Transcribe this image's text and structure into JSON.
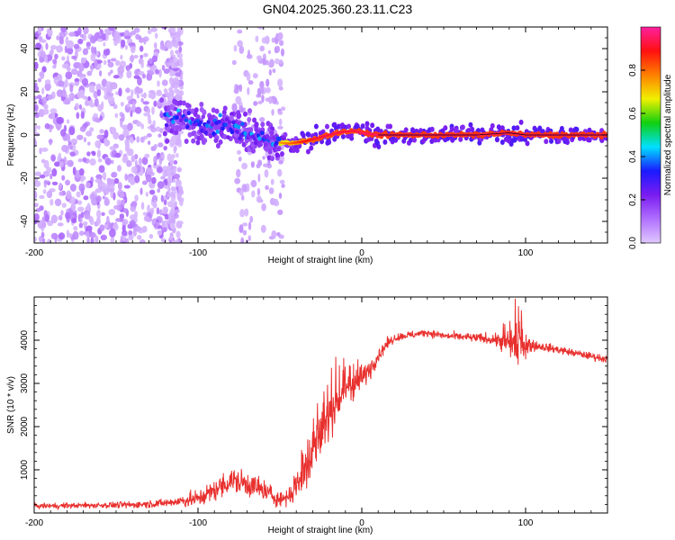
{
  "title": "GN04.2025.360.23.11.C23",
  "colors": {
    "snr_line": "#e8302e",
    "tf_ridge": "#d81818",
    "frame": "#000000",
    "colorbar_stops": [
      "#e0c8ff",
      "#b070ff",
      "#7a1cf0",
      "#1a1aff",
      "#00e0ff",
      "#10d010",
      "#f0f000",
      "#ff8000",
      "#ff1010",
      "#ff20a0"
    ]
  },
  "chart_data": [
    {
      "type": "heatmap",
      "name": "time-frequency",
      "xlabel": "Height of straight line (km)",
      "ylabel": "Frequency (Hz)",
      "xlim": [
        -200,
        150
      ],
      "ylim": [
        -50,
        50
      ],
      "xticks": [
        -200,
        -100,
        0,
        100
      ],
      "yticks": [
        -40,
        -20,
        0,
        20,
        40
      ],
      "ridge": {
        "x": [
          -115,
          -105,
          -95,
          -85,
          -75,
          -65,
          -55,
          -45,
          -35,
          -25,
          -15,
          -5,
          0,
          10,
          30,
          50,
          70,
          90,
          100,
          120,
          150
        ],
        "freq": [
          8,
          7,
          5,
          4,
          2,
          0,
          -3,
          -4,
          -3,
          -1,
          1,
          2,
          1,
          0,
          0,
          0,
          0,
          1,
          0,
          0,
          0
        ],
        "amplitude": [
          0.25,
          0.3,
          0.35,
          0.35,
          0.3,
          0.3,
          0.4,
          0.6,
          0.85,
          0.95,
          0.95,
          0.95,
          1,
          1,
          1,
          1,
          1,
          1,
          1,
          1,
          1
        ]
      },
      "colorbar": {
        "label": "Normalized spectral amplitude",
        "range": [
          0,
          1
        ],
        "ticks": [
          "0.0",
          "0.2",
          "0.4",
          "0.6",
          "0.8"
        ]
      }
    },
    {
      "type": "line",
      "name": "snr",
      "xlabel": "Height of straight line (km)",
      "ylabel": "SNR (10 * v/v)",
      "xlim": [
        -200,
        150
      ],
      "ylim": [
        0,
        5000
      ],
      "xticks": [
        -200,
        -100,
        0,
        100
      ],
      "yticks": [
        1000,
        2000,
        3000,
        4000
      ],
      "series": [
        {
          "name": "SNR",
          "x": [
            -200,
            -180,
            -160,
            -140,
            -120,
            -110,
            -100,
            -90,
            -80,
            -70,
            -60,
            -50,
            -45,
            -40,
            -35,
            -30,
            -25,
            -20,
            -15,
            -10,
            -5,
            0,
            5,
            10,
            15,
            20,
            25,
            30,
            35,
            40,
            50,
            60,
            70,
            80,
            85,
            90,
            95,
            100,
            105,
            110,
            120,
            130,
            140,
            150
          ],
          "y": [
            160,
            170,
            180,
            190,
            230,
            280,
            330,
            520,
            750,
            680,
            520,
            310,
            390,
            550,
            1000,
            1450,
            1900,
            2300,
            2600,
            2800,
            3000,
            3100,
            3350,
            3650,
            3900,
            4050,
            4100,
            4120,
            4150,
            4180,
            4100,
            4080,
            4050,
            4020,
            3980,
            3950,
            4000,
            3900,
            3880,
            3850,
            3780,
            3700,
            3630,
            3560
          ],
          "amplitude": [
            80,
            80,
            90,
            100,
            120,
            180,
            260,
            300,
            380,
            380,
            350,
            220,
            300,
            420,
            650,
            800,
            750,
            800,
            650,
            550,
            450,
            350,
            300,
            220,
            160,
            120,
            110,
            110,
            110,
            110,
            110,
            120,
            130,
            170,
            260,
            420,
            700,
            300,
            170,
            130,
            120,
            110,
            110,
            110
          ]
        }
      ]
    }
  ]
}
